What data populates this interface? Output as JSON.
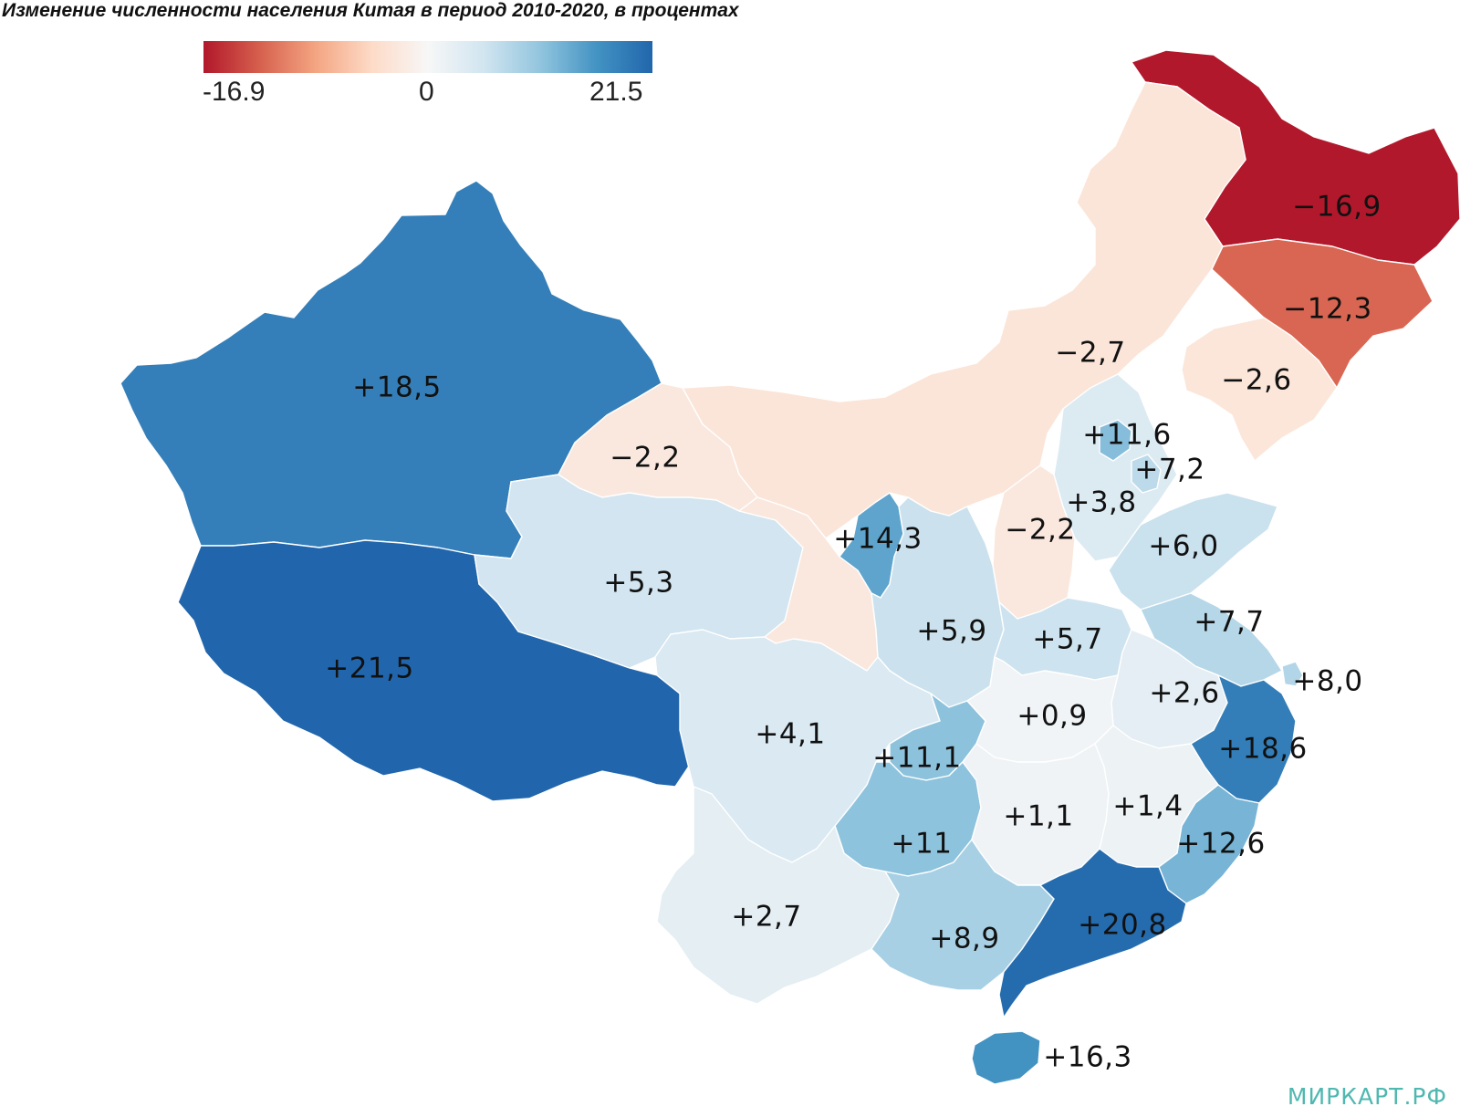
{
  "title": "Изменение численности населения Китая в период 2010-2020, в процентах",
  "legend": {
    "min_label": "-16.9",
    "mid_label": "0",
    "max_label": "21.5",
    "min": -16.9,
    "max": 21.5,
    "colors": [
      "#b2182b",
      "#d6604d",
      "#f4a582",
      "#fddbc7",
      "#f7f7f7",
      "#d1e5f0",
      "#92c5de",
      "#4393c3",
      "#2166ac"
    ]
  },
  "regions": [
    {
      "key": "heilongjiang",
      "label": "−16,9",
      "value": -16.9
    },
    {
      "key": "jilin",
      "label": "−12,3",
      "value": -12.3
    },
    {
      "key": "inner-mongolia",
      "label": "−2,7",
      "value": -2.7
    },
    {
      "key": "liaoning",
      "label": "−2,6",
      "value": -2.6
    },
    {
      "key": "xinjiang",
      "label": "+18,5",
      "value": 18.5
    },
    {
      "key": "tibet",
      "label": "+21,5",
      "value": 21.5
    },
    {
      "key": "gansu-west",
      "label": "−2,2",
      "value": -2.2
    },
    {
      "key": "qinghai",
      "label": "+5,3",
      "value": 5.3
    },
    {
      "key": "gansu-east",
      "label": "",
      "value": -2.2
    },
    {
      "key": "ningxia",
      "label": "+14,3",
      "value": 14.3
    },
    {
      "key": "shanxi",
      "label": "−2,2",
      "value": -2.2
    },
    {
      "key": "hebei",
      "label": "+3,8",
      "value": 3.8
    },
    {
      "key": "beijing",
      "label": "+11,6",
      "value": 11.6
    },
    {
      "key": "tianjin",
      "label": "+7,2",
      "value": 7.2
    },
    {
      "key": "shandong",
      "label": "+6,0",
      "value": 6.0
    },
    {
      "key": "shaanxi",
      "label": "+5,9",
      "value": 5.9
    },
    {
      "key": "henan",
      "label": "+5,7",
      "value": 5.7
    },
    {
      "key": "jiangsu",
      "label": "+7,7",
      "value": 7.7
    },
    {
      "key": "shanghai",
      "label": "+8,0",
      "value": 8.0
    },
    {
      "key": "anhui",
      "label": "+2,6",
      "value": 2.6
    },
    {
      "key": "sichuan",
      "label": "+4,1",
      "value": 4.1
    },
    {
      "key": "chongqing",
      "label": "+11,1",
      "value": 11.1
    },
    {
      "key": "hubei",
      "label": "+0,9",
      "value": 0.9
    },
    {
      "key": "zhejiang",
      "label": "+18,6",
      "value": 18.6
    },
    {
      "key": "guizhou",
      "label": "+11",
      "value": 11
    },
    {
      "key": "hunan",
      "label": "+1,1",
      "value": 1.1
    },
    {
      "key": "jiangxi",
      "label": "+1,4",
      "value": 1.4
    },
    {
      "key": "fujian",
      "label": "+12,6",
      "value": 12.6
    },
    {
      "key": "yunnan",
      "label": "+2,7",
      "value": 2.7
    },
    {
      "key": "guangxi",
      "label": "+8,9",
      "value": 8.9
    },
    {
      "key": "guangdong",
      "label": "+20,8",
      "value": 20.8
    },
    {
      "key": "hainan",
      "label": "+16,3",
      "value": 16.3
    }
  ],
  "watermark": "МИРКАРТ.РФ"
}
